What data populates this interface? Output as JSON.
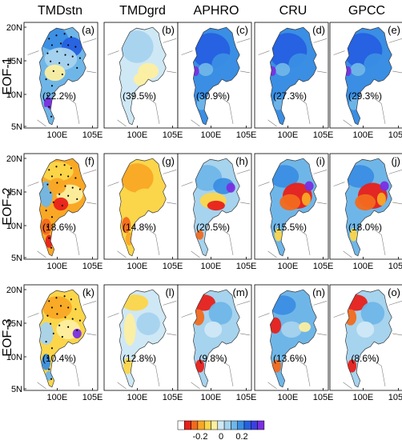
{
  "columns": [
    "TMDstn",
    "TMDgrd",
    "APHRO",
    "CRU",
    "GPCC"
  ],
  "rows": [
    "EOF-1",
    "EOF-2",
    "EOF-3"
  ],
  "panels": [
    {
      "letter": "(a)",
      "variance": "(22.2%)",
      "pattern": "stn1"
    },
    {
      "letter": "(b)",
      "variance": "(39.5%)",
      "pattern": "grd1"
    },
    {
      "letter": "(c)",
      "variance": "(30.9%)",
      "pattern": "blue1"
    },
    {
      "letter": "(d)",
      "variance": "(27.3%)",
      "pattern": "blue1"
    },
    {
      "letter": "(e)",
      "variance": "(29.3%)",
      "pattern": "blue1"
    },
    {
      "letter": "(f)",
      "variance": "(18.6%)",
      "pattern": "stn2"
    },
    {
      "letter": "(g)",
      "variance": "(14.8%)",
      "pattern": "grd2"
    },
    {
      "letter": "(h)",
      "variance": "(20.5%)",
      "pattern": "aph2"
    },
    {
      "letter": "(i)",
      "variance": "(15.5%)",
      "pattern": "cru2"
    },
    {
      "letter": "(j)",
      "variance": "(18.0%)",
      "pattern": "cru2"
    },
    {
      "letter": "(k)",
      "variance": "(10.4%)",
      "pattern": "stn3"
    },
    {
      "letter": "(l)",
      "variance": "(12.8%)",
      "pattern": "grd3"
    },
    {
      "letter": "(m)",
      "variance": "(9.8%)",
      "pattern": "aph3"
    },
    {
      "letter": "(n)",
      "variance": "(13.6%)",
      "pattern": "cru3"
    },
    {
      "letter": "(o)",
      "variance": "(8.6%)",
      "pattern": "aph3"
    }
  ],
  "y_ticks": [
    "20N",
    "15N",
    "10N",
    "5N"
  ],
  "x_ticks": [
    "100E",
    "105E"
  ],
  "colorbar": {
    "labels": [
      "-0.2",
      "0",
      "0.2"
    ],
    "colors": [
      "#ffffff",
      "#e8201a",
      "#f26a1c",
      "#f9a825",
      "#fbd64a",
      "#fcefa0",
      "#cfe8f5",
      "#a6d3ee",
      "#6fb6e8",
      "#3a8ee3",
      "#2560e0",
      "#3b3fe0",
      "#7a2fe0"
    ]
  }
}
